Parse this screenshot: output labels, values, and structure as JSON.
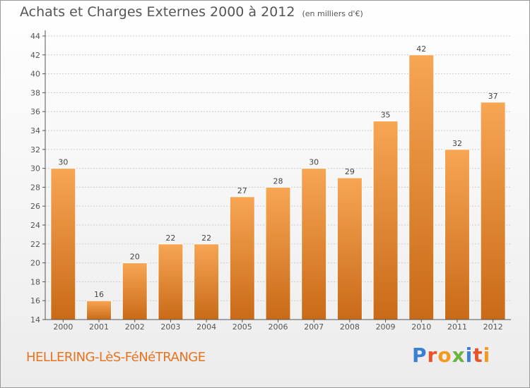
{
  "header": {
    "title": "Achats et Charges Externes 2000 à 2012",
    "subtitle": "(en milliers d'€)"
  },
  "footer": {
    "commune": "HELLERING-LèS-FéNéTRANGE",
    "brand": "Proxiti",
    "brand_colors": [
      "#3b7fd4",
      "#e8542a",
      "#f29a1f",
      "#6bb33f",
      "#3b7fd4",
      "#e8542a",
      "#f29a1f"
    ]
  },
  "colors": {
    "bar_top": "#f7a654",
    "bar_bottom": "#c96a18",
    "axis": "#555555",
    "grid": "#cccccc"
  },
  "chart_data": {
    "type": "bar",
    "categories": [
      "2000",
      "2001",
      "2002",
      "2003",
      "2004",
      "2005",
      "2006",
      "2007",
      "2008",
      "2009",
      "2010",
      "2011",
      "2012"
    ],
    "values": [
      30,
      16,
      20,
      22,
      22,
      27,
      28,
      30,
      29,
      35,
      42,
      32,
      37
    ],
    "yticks": [
      14,
      16,
      18,
      20,
      22,
      24,
      26,
      28,
      30,
      32,
      34,
      36,
      38,
      40,
      42,
      44
    ],
    "ylim": [
      14,
      44
    ],
    "grid": true,
    "data_labels": true
  }
}
